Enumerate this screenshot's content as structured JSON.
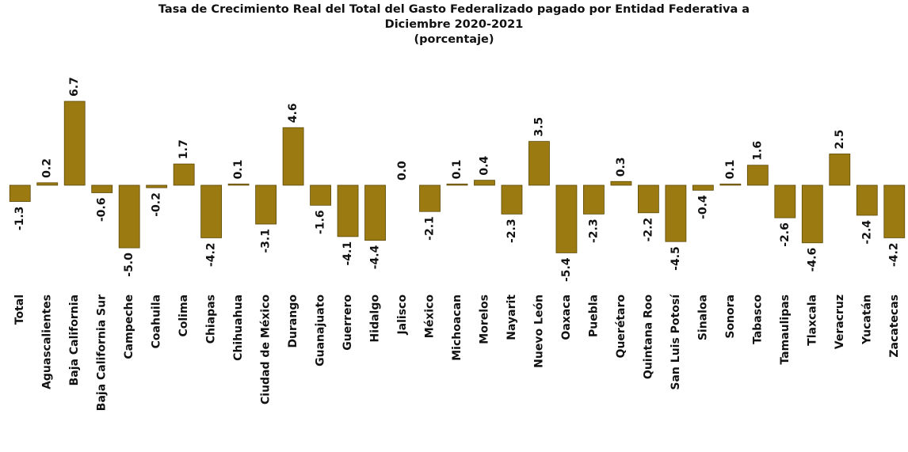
{
  "chart_data": {
    "type": "bar",
    "title": "Tasa de Crecimiento Real del Total del Gasto Federalizado pagado por Entidad Federativa a Diciembre 2020-2021",
    "subtitle": "(porcentaje)",
    "categories": [
      "Total",
      "Aguascalientes",
      "Baja California",
      "Baja California Sur",
      "Campeche",
      "Coahuila",
      "Colima",
      "Chiapas",
      "Chihuahua",
      "Ciudad de México",
      "Durango",
      "Guanajuato",
      "Guerrero",
      "Hidalgo",
      "Jalisco",
      "México",
      "Michoacan",
      "Morelos",
      "Nayarit",
      "Nuevo León",
      "Oaxaca",
      "Puebla",
      "Querétaro",
      "Quintana Roo",
      "San Luis Potosí",
      "Sinaloa",
      "Sonora",
      "Tabasco",
      "Tamaulipas",
      "Tlaxcala",
      "Veracruz",
      "Yucatán",
      "Zacatecas"
    ],
    "values": [
      -1.3,
      0.2,
      6.7,
      -0.6,
      -5.0,
      -0.2,
      1.7,
      -4.2,
      0.1,
      -3.1,
      4.6,
      -1.6,
      -4.1,
      -4.4,
      0.0,
      -2.1,
      0.1,
      0.4,
      -2.3,
      3.5,
      -5.4,
      -2.3,
      0.3,
      -2.2,
      -4.5,
      -0.4,
      0.1,
      1.6,
      -2.6,
      -4.6,
      2.5,
      -2.4,
      -4.2
    ],
    "value_labels": [
      "-1.3",
      "0.2",
      "6.7",
      "-0.6",
      "-5.0",
      "-0.2",
      "1.7",
      "-4.2",
      "0.1",
      "-3.1",
      "4.6",
      "-1.6",
      "-4.1",
      "-4.4",
      "0.0",
      "-2.1",
      "0.1",
      "0.4",
      "-2.3",
      "3.5",
      "-5.4",
      "-2.3",
      "0.3",
      "-2.2",
      "-4.5",
      "-0.4",
      "0.1",
      "1.6",
      "-2.6",
      "-4.6",
      "2.5",
      "-2.4",
      "-4.2"
    ],
    "color": "#9b7a12"
  }
}
